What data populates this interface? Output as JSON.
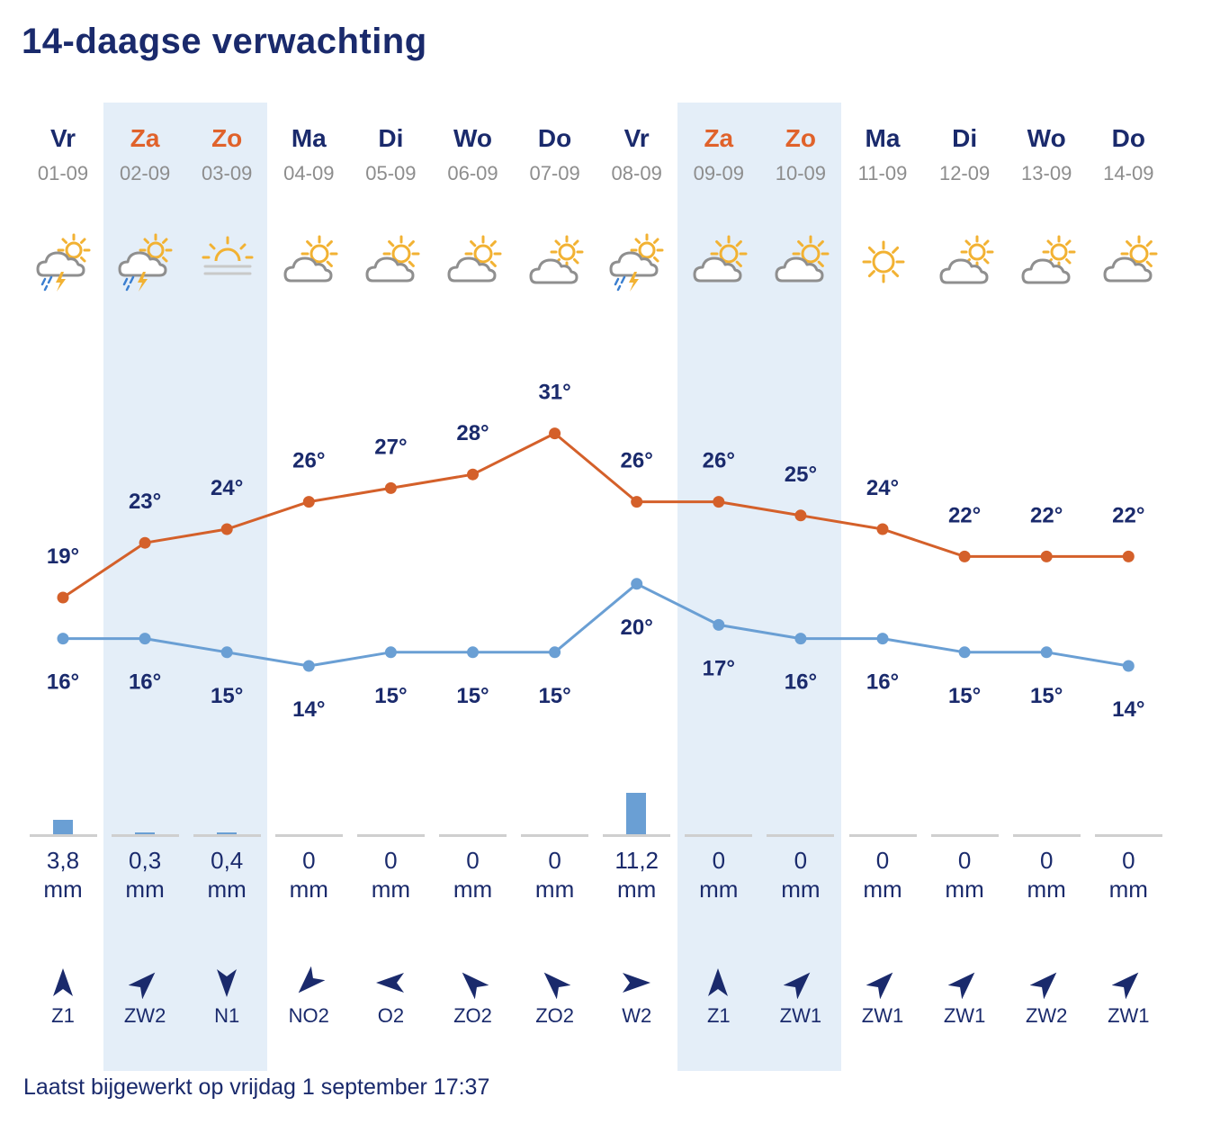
{
  "title": "14-daagse verwachting",
  "updated": "Laatst bijgewerkt op vrijdag 1 september 17:37",
  "colors": {
    "max": "#d4602a",
    "min": "#6a9fd4",
    "text": "#1a2a6c",
    "weekend_text": "#e0622b",
    "weekend_band": "#e4eef8",
    "rain_bar": "#6a9fd4",
    "baseline": "#cfcfcf"
  },
  "days": [
    {
      "day": "Vr",
      "date": "01-09",
      "weekend": false,
      "icon": "sun-cloud-rain-lightning-icon",
      "max_label": "19°",
      "min_label": "16°",
      "rain": "3,8",
      "rain_unit": "mm",
      "wind": "Z1",
      "wind_dir_deg": 0
    },
    {
      "day": "Za",
      "date": "02-09",
      "weekend": true,
      "icon": "sun-cloud-rain-lightning-icon",
      "max_label": "23°",
      "min_label": "16°",
      "rain": "0,3",
      "rain_unit": "mm",
      "wind": "ZW2",
      "wind_dir_deg": 45
    },
    {
      "day": "Zo",
      "date": "03-09",
      "weekend": true,
      "icon": "sun-fog-icon",
      "max_label": "24°",
      "min_label": "15°",
      "rain": "0,4",
      "rain_unit": "mm",
      "wind": "N1",
      "wind_dir_deg": 180
    },
    {
      "day": "Ma",
      "date": "04-09",
      "weekend": false,
      "icon": "partly-cloudy-icon",
      "max_label": "26°",
      "min_label": "14°",
      "rain": "0",
      "rain_unit": "mm",
      "wind": "NO2",
      "wind_dir_deg": 225
    },
    {
      "day": "Di",
      "date": "05-09",
      "weekend": false,
      "icon": "partly-cloudy-icon",
      "max_label": "27°",
      "min_label": "15°",
      "rain": "0",
      "rain_unit": "mm",
      "wind": "O2",
      "wind_dir_deg": 270
    },
    {
      "day": "Wo",
      "date": "06-09",
      "weekend": false,
      "icon": "partly-cloudy-icon",
      "max_label": "28°",
      "min_label": "15°",
      "rain": "0",
      "rain_unit": "mm",
      "wind": "ZO2",
      "wind_dir_deg": 315
    },
    {
      "day": "Do",
      "date": "07-09",
      "weekend": false,
      "icon": "mostly-cloudy-icon",
      "max_label": "31°",
      "min_label": "15°",
      "rain": "0",
      "rain_unit": "mm",
      "wind": "ZO2",
      "wind_dir_deg": 315
    },
    {
      "day": "Vr",
      "date": "08-09",
      "weekend": false,
      "icon": "sun-cloud-rain-lightning-icon",
      "max_label": "26°",
      "min_label": "20°",
      "rain": "11,2",
      "rain_unit": "mm",
      "wind": "W2",
      "wind_dir_deg": 90
    },
    {
      "day": "Za",
      "date": "09-09",
      "weekend": true,
      "icon": "partly-cloudy-icon",
      "max_label": "26°",
      "min_label": "17°",
      "rain": "0",
      "rain_unit": "mm",
      "wind": "Z1",
      "wind_dir_deg": 0
    },
    {
      "day": "Zo",
      "date": "10-09",
      "weekend": true,
      "icon": "partly-cloudy-icon",
      "max_label": "25°",
      "min_label": "16°",
      "rain": "0",
      "rain_unit": "mm",
      "wind": "ZW1",
      "wind_dir_deg": 45
    },
    {
      "day": "Ma",
      "date": "11-09",
      "weekend": false,
      "icon": "sun-icon",
      "max_label": "24°",
      "min_label": "16°",
      "rain": "0",
      "rain_unit": "mm",
      "wind": "ZW1",
      "wind_dir_deg": 45
    },
    {
      "day": "Di",
      "date": "12-09",
      "weekend": false,
      "icon": "mostly-cloudy-icon",
      "max_label": "22°",
      "min_label": "15°",
      "rain": "0",
      "rain_unit": "mm",
      "wind": "ZW1",
      "wind_dir_deg": 45
    },
    {
      "day": "Wo",
      "date": "13-09",
      "weekend": false,
      "icon": "mostly-cloudy-icon",
      "max_label": "22°",
      "min_label": "15°",
      "rain": "0",
      "rain_unit": "mm",
      "wind": "ZW2",
      "wind_dir_deg": 45
    },
    {
      "day": "Do",
      "date": "14-09",
      "weekend": false,
      "icon": "partly-cloudy-icon",
      "max_label": "22°",
      "min_label": "14°",
      "rain": "0",
      "rain_unit": "mm",
      "wind": "ZW1",
      "wind_dir_deg": 45
    }
  ],
  "chart_data": {
    "type": "line",
    "categories": [
      "01-09",
      "02-09",
      "03-09",
      "04-09",
      "05-09",
      "06-09",
      "07-09",
      "08-09",
      "09-09",
      "10-09",
      "11-09",
      "12-09",
      "13-09",
      "14-09"
    ],
    "series": [
      {
        "values": [
          19,
          23,
          24,
          26,
          27,
          28,
          31,
          26,
          26,
          25,
          24,
          22,
          22,
          22
        ]
      },
      {
        "values": [
          16,
          16,
          15,
          14,
          15,
          15,
          15,
          20,
          17,
          16,
          16,
          15,
          15,
          14
        ]
      }
    ],
    "precipitation_mm": [
      3.8,
      0.3,
      0.4,
      0,
      0,
      0,
      0,
      11.2,
      0,
      0,
      0,
      0,
      0,
      0
    ],
    "grid": false
  }
}
